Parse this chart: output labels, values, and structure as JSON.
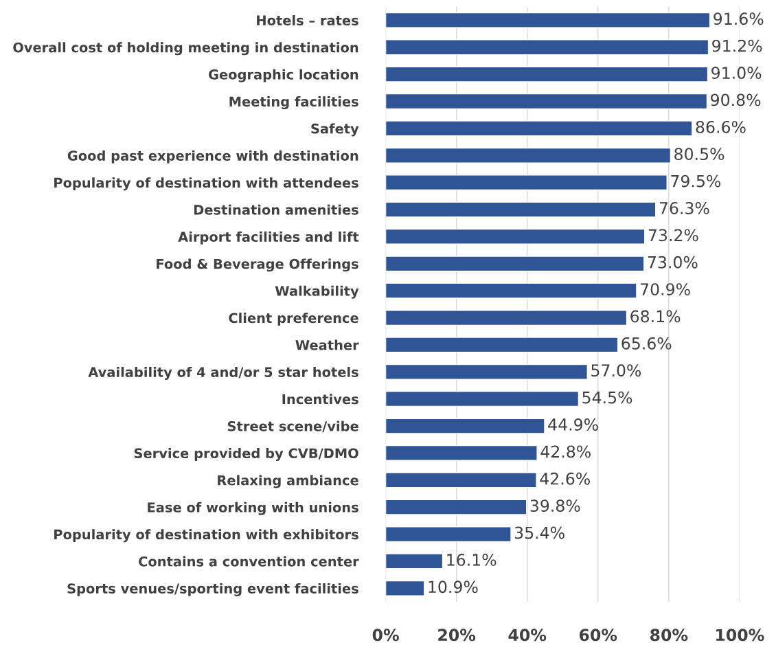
{
  "chart_data": {
    "type": "bar",
    "orientation": "horizontal",
    "categories": [
      "Hotels – rates",
      "Overall cost of holding meeting in destination",
      "Geographic location",
      "Meeting facilities",
      "Safety",
      "Good past experience with destination",
      "Popularity of destination with attendees",
      "Destination amenities",
      "Airport facilities and lift",
      "Food & Beverage Offerings",
      "Walkability",
      "Client preference",
      "Weather",
      "Availability of 4 and/or 5 star hotels",
      "Incentives",
      "Street scene/vibe",
      "Service provided by CVB/DMO",
      "Relaxing ambiance",
      "Ease of working with unions",
      "Popularity of destination with exhibitors",
      "Contains a convention center",
      "Sports venues/sporting event facilities"
    ],
    "values": [
      91.6,
      91.2,
      91.0,
      90.8,
      86.6,
      80.5,
      79.5,
      76.3,
      73.2,
      73.0,
      70.9,
      68.1,
      65.6,
      57.0,
      54.5,
      44.9,
      42.8,
      42.6,
      39.8,
      35.4,
      16.1,
      10.9
    ],
    "value_labels": [
      "91.6%",
      "91.2%",
      "91.0%",
      "90.8%",
      "86.6%",
      "80.5%",
      "79.5%",
      "76.3%",
      "73.2%",
      "73.0%",
      "70.9%",
      "68.1%",
      "65.6%",
      "57.0%",
      "54.5%",
      "44.9%",
      "42.8%",
      "42.6%",
      "39.8%",
      "35.4%",
      "16.1%",
      "10.9%"
    ],
    "color": "#2f5597",
    "xlim": [
      0,
      100
    ],
    "xticks": [
      {
        "value": 0,
        "label": "0%"
      },
      {
        "value": 20,
        "label": "20%"
      },
      {
        "value": 40,
        "label": "40%"
      },
      {
        "value": 60,
        "label": "60%"
      },
      {
        "value": 80,
        "label": "80%"
      },
      {
        "value": 100,
        "label": "100%"
      }
    ],
    "grid": "x",
    "legend": false
  }
}
